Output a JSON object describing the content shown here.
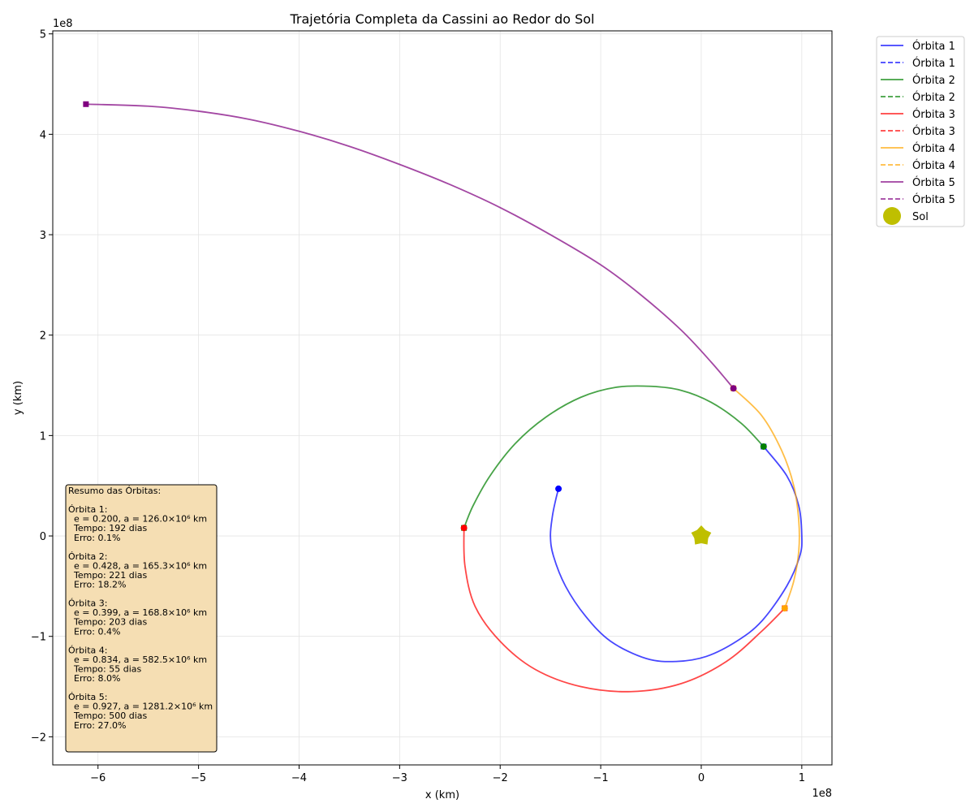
{
  "chart_data": {
    "type": "line",
    "title": "Trajetória Completa da Cassini ao Redor do Sol",
    "xlabel": "x (km)",
    "ylabel": "y (km)",
    "x_scale_label": "1e8",
    "y_scale_label": "1e8",
    "xlim": [
      -6.45,
      1.3
    ],
    "ylim": [
      -2.28,
      5.03
    ],
    "xticks": [
      -6,
      -5,
      -4,
      -3,
      -2,
      -1,
      0,
      1
    ],
    "yticks": [
      -2,
      -1,
      0,
      1,
      2,
      3,
      4,
      5
    ],
    "xtick_labels": [
      "−6",
      "−5",
      "−4",
      "−3",
      "−2",
      "−1",
      "0",
      "1"
    ],
    "ytick_labels": [
      "−2",
      "−1",
      "0",
      "1",
      "2",
      "3",
      "4",
      "5"
    ],
    "grid": true,
    "legend_position": "outside-top-right",
    "units_note": "x and y values in units of 1e8 km",
    "sun": {
      "name": "Sol",
      "x": 0,
      "y": 0,
      "color": "#bfbf00"
    },
    "series": [
      {
        "name": "Órbita 1",
        "color": "#0000ff",
        "points": [
          [
            -1.42,
            0.47
          ],
          [
            -1.45,
            0.35
          ],
          [
            -1.48,
            0.2
          ],
          [
            -1.5,
            0.0
          ],
          [
            -1.47,
            -0.2
          ],
          [
            -1.35,
            -0.5
          ],
          [
            -1.15,
            -0.8
          ],
          [
            -0.9,
            -1.05
          ],
          [
            -0.55,
            -1.22
          ],
          [
            -0.25,
            -1.25
          ],
          [
            0.05,
            -1.2
          ],
          [
            0.35,
            -1.05
          ],
          [
            0.6,
            -0.85
          ],
          [
            0.85,
            -0.5
          ],
          [
            0.98,
            -0.2
          ],
          [
            1.0,
            0.0
          ],
          [
            0.97,
            0.3
          ],
          [
            0.85,
            0.6
          ],
          [
            0.62,
            0.89
          ]
        ],
        "start": [
          -1.42,
          0.47
        ],
        "end": [
          0.62,
          0.89
        ],
        "dashed_points": []
      },
      {
        "name": "Órbita 2",
        "color": "#008000",
        "points": [
          [
            0.62,
            0.89
          ],
          [
            0.4,
            1.12
          ],
          [
            0.1,
            1.33
          ],
          [
            -0.2,
            1.45
          ],
          [
            -0.5,
            1.49
          ],
          [
            -0.85,
            1.48
          ],
          [
            -1.2,
            1.38
          ],
          [
            -1.55,
            1.18
          ],
          [
            -1.85,
            0.92
          ],
          [
            -2.1,
            0.6
          ],
          [
            -2.27,
            0.3
          ],
          [
            -2.36,
            0.08
          ]
        ],
        "start": [
          0.62,
          0.89
        ],
        "end": [
          -2.36,
          0.08
        ],
        "dashed_points": []
      },
      {
        "name": "Órbita 3",
        "color": "#ff0000",
        "points": [
          [
            -2.36,
            0.08
          ],
          [
            -2.35,
            -0.3
          ],
          [
            -2.25,
            -0.7
          ],
          [
            -2.0,
            -1.05
          ],
          [
            -1.65,
            -1.33
          ],
          [
            -1.2,
            -1.5
          ],
          [
            -0.7,
            -1.55
          ],
          [
            -0.2,
            -1.47
          ],
          [
            0.25,
            -1.25
          ],
          [
            0.6,
            -0.95
          ],
          [
            0.83,
            -0.72
          ]
        ],
        "start": [
          -2.36,
          0.08
        ],
        "end": [
          0.83,
          -0.72
        ],
        "dashed_points": []
      },
      {
        "name": "Órbita 4",
        "color": "#ffa500",
        "points": [
          [
            0.83,
            -0.72
          ],
          [
            0.92,
            -0.45
          ],
          [
            0.97,
            -0.15
          ],
          [
            0.97,
            0.15
          ],
          [
            0.92,
            0.5
          ],
          [
            0.8,
            0.85
          ],
          [
            0.6,
            1.2
          ],
          [
            0.32,
            1.47
          ]
        ],
        "start": [
          0.83,
          -0.72
        ],
        "end": [
          0.32,
          1.47
        ],
        "dashed_points": []
      },
      {
        "name": "Órbita 5",
        "color": "#800080",
        "points": [
          [
            0.32,
            1.47
          ],
          [
            0.1,
            1.73
          ],
          [
            -0.2,
            2.05
          ],
          [
            -0.6,
            2.4
          ],
          [
            -1.0,
            2.7
          ],
          [
            -1.5,
            3.0
          ],
          [
            -2.0,
            3.27
          ],
          [
            -2.5,
            3.5
          ],
          [
            -3.0,
            3.7
          ],
          [
            -3.5,
            3.88
          ],
          [
            -4.0,
            4.03
          ],
          [
            -4.5,
            4.15
          ],
          [
            -5.0,
            4.23
          ],
          [
            -5.5,
            4.28
          ],
          [
            -6.12,
            4.3
          ]
        ],
        "start": [
          0.32,
          1.47
        ],
        "end": [
          -6.12,
          4.3
        ],
        "dashed_points": []
      }
    ],
    "legend_entries": [
      {
        "label": "Órbita 1",
        "color": "#0000ff",
        "style": "solid"
      },
      {
        "label": "Órbita 1",
        "color": "#0000ff",
        "style": "dashed"
      },
      {
        "label": "Órbita 2",
        "color": "#008000",
        "style": "solid"
      },
      {
        "label": "Órbita 2",
        "color": "#008000",
        "style": "dashed"
      },
      {
        "label": "Órbita 3",
        "color": "#ff0000",
        "style": "solid"
      },
      {
        "label": "Órbita 3",
        "color": "#ff0000",
        "style": "dashed"
      },
      {
        "label": "Órbita 4",
        "color": "#ffa500",
        "style": "solid"
      },
      {
        "label": "Órbita 4",
        "color": "#ffa500",
        "style": "dashed"
      },
      {
        "label": "Órbita 5",
        "color": "#800080",
        "style": "solid"
      },
      {
        "label": "Órbita 5",
        "color": "#800080",
        "style": "dashed"
      },
      {
        "label": "Sol",
        "color": "#bfbf00",
        "style": "marker"
      }
    ],
    "summary_box": {
      "lines": [
        "Resumo das Órbitas:",
        "",
        "Órbita 1:",
        "  e = 0.200, a = 126.0×10⁶ km",
        "  Tempo: 192 dias",
        "  Erro: 0.1%",
        "",
        "Órbita 2:",
        "  e = 0.428, a = 165.3×10⁶ km",
        "  Tempo: 221 dias",
        "  Erro: 18.2%",
        "",
        "Órbita 3:",
        "  e = 0.399, a = 168.8×10⁶ km",
        "  Tempo: 203 dias",
        "  Erro: 0.4%",
        "",
        "Órbita 4:",
        "  e = 0.834, a = 582.5×10⁶ km",
        "  Tempo: 55 dias",
        "  Erro: 8.0%",
        "",
        "Órbita 5:",
        "  e = 0.927, a = 1281.2×10⁶ km",
        "  Tempo: 500 dias",
        "  Erro: 27.0%"
      ],
      "background": "#f5deb3"
    }
  }
}
